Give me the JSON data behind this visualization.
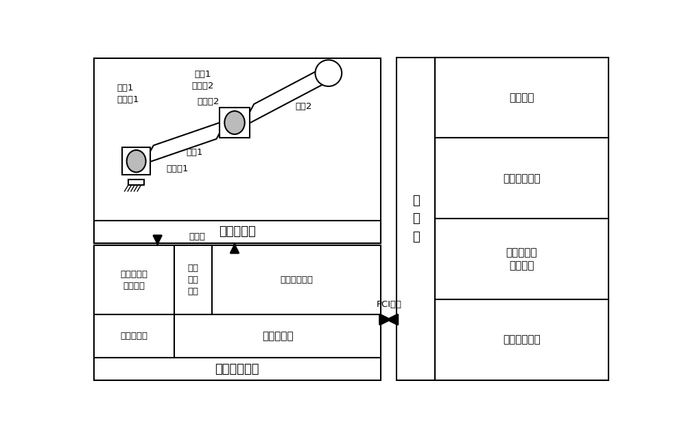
{
  "bg_color": "#ffffff",
  "line_color": "#000000",
  "text_color": "#000000",
  "font_size_large": 13,
  "font_size_medium": 11,
  "font_size_small": 9.5,
  "robot_body_label": "机器人本体",
  "data_collection_label": "数据采集模块",
  "motion_card_label": "运动控制卡",
  "driver_label": "驱动器模拟\n量监测端",
  "data_collect_interface_label": "数据\n采集\n接口",
  "motion_control_interface_label": "运动控制接口",
  "encoder_label": "旋转编码器",
  "signal_line_label": "信号线",
  "pci_bus_label": "PCI总线",
  "host_label": "上\n位\n机",
  "main_controller_label": "主控制器",
  "data_processing_label": "数据处理单元",
  "dynamics_label": "动力学参数\n辨识单元",
  "realtime_monitor_label": "实时监测单元",
  "motor1_encoder1_label": "电机1\n编码器1",
  "motor1_encoder2_label": "电机1\n编码器2",
  "reducer2_label": "减速器2",
  "reducer1_label": "减速器1",
  "link1_label": "连杆1",
  "link2_label": "连杆2"
}
